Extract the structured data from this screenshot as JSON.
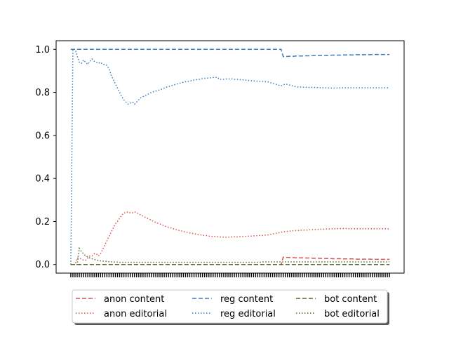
{
  "chart_data": {
    "type": "line",
    "title": "",
    "xlabel": "",
    "ylabel": "",
    "ylim": [
      -0.04,
      1.04
    ],
    "yticks": [
      0.0,
      0.2,
      0.4,
      0.6,
      0.8,
      1.0
    ],
    "ytick_labels": [
      "0.0",
      "0.2",
      "0.4",
      "0.6",
      "0.8",
      "1.0"
    ],
    "xticks_dense": true,
    "grid": false,
    "legend_placement": "below",
    "x": [
      0,
      1,
      2,
      3,
      4,
      5,
      6,
      7,
      8,
      9,
      10,
      11,
      12,
      13,
      14,
      15,
      16,
      17,
      18,
      19,
      20,
      21,
      22,
      23,
      24,
      25,
      26,
      27,
      28,
      29,
      30,
      31,
      32,
      33,
      34,
      35,
      36,
      37,
      38,
      39,
      40,
      41,
      42,
      43,
      44,
      45,
      46,
      47,
      48,
      49,
      50,
      51,
      52,
      53,
      54,
      55,
      56,
      57,
      58,
      59,
      60,
      61,
      62,
      63,
      64,
      65,
      66,
      67,
      68,
      69,
      70,
      71,
      72,
      73,
      74,
      75,
      76,
      77,
      78,
      79,
      80,
      81,
      82,
      83,
      84,
      85,
      86,
      87,
      88,
      89,
      90,
      91,
      92,
      93,
      94,
      95,
      96,
      97,
      98,
      99,
      100,
      101,
      102,
      103,
      104,
      105,
      106,
      107,
      108,
      109,
      110,
      111,
      112,
      113,
      114,
      115,
      116,
      117,
      118,
      119,
      120,
      121,
      122,
      123,
      124,
      125,
      126,
      127,
      128,
      129,
      130,
      131,
      132,
      133,
      134,
      135,
      136,
      137,
      138,
      139,
      140,
      141,
      142,
      143,
      144,
      145,
      146,
      147,
      148,
      149,
      150
    ],
    "series": [
      {
        "name": "anon content",
        "color": "#d9534f",
        "style": "dashed",
        "values": [
          0,
          0,
          0,
          0,
          0,
          0,
          0,
          0,
          0,
          0,
          0,
          0,
          0,
          0,
          0,
          0,
          0,
          0,
          0,
          0,
          0,
          0,
          0,
          0,
          0,
          0,
          0,
          0,
          0,
          0,
          0,
          0,
          0,
          0,
          0,
          0,
          0,
          0,
          0,
          0,
          0,
          0,
          0,
          0,
          0,
          0,
          0,
          0,
          0,
          0,
          0,
          0,
          0,
          0,
          0,
          0,
          0,
          0,
          0,
          0,
          0,
          0,
          0,
          0,
          0,
          0,
          0,
          0,
          0,
          0,
          0,
          0,
          0,
          0,
          0,
          0,
          0,
          0,
          0,
          0,
          0,
          0,
          0,
          0,
          0,
          0,
          0,
          0,
          0,
          0,
          0,
          0,
          0,
          0,
          0,
          0,
          0,
          0,
          0,
          0,
          0.034,
          0.033,
          0.033,
          0.032,
          0.032,
          0.032,
          0.031,
          0.031,
          0.031,
          0.031,
          0.03,
          0.03,
          0.03,
          0.03,
          0.029,
          0.029,
          0.029,
          0.029,
          0.028,
          0.028,
          0.028,
          0.028,
          0.028,
          0.027,
          0.027,
          0.027,
          0.027,
          0.027,
          0.026,
          0.026,
          0.026,
          0.026,
          0.026,
          0.026,
          0.025,
          0.025,
          0.025,
          0.025,
          0.025,
          0.025,
          0.025,
          0.025,
          0.024,
          0.024,
          0.024,
          0.024,
          0.024,
          0.024,
          0.024,
          0.024,
          0.024
        ]
      },
      {
        "name": "anon editorial",
        "color": "#d9534f",
        "style": "dotted",
        "values": [
          0,
          0,
          0,
          0.03,
          0.03,
          0.025,
          0.02,
          0.02,
          0.03,
          0.04,
          0.04,
          0.05,
          0.05,
          0.04,
          0.05,
          0.07,
          0.09,
          0.11,
          0.13,
          0.15,
          0.17,
          0.19,
          0.2,
          0.215,
          0.23,
          0.24,
          0.24,
          0.245,
          0.24,
          0.24,
          0.245,
          0.24,
          0.235,
          0.23,
          0.225,
          0.22,
          0.215,
          0.21,
          0.205,
          0.2,
          0.196,
          0.192,
          0.188,
          0.184,
          0.18,
          0.176,
          0.173,
          0.17,
          0.167,
          0.164,
          0.161,
          0.158,
          0.156,
          0.153,
          0.151,
          0.149,
          0.147,
          0.145,
          0.143,
          0.141,
          0.139,
          0.138,
          0.136,
          0.135,
          0.134,
          0.132,
          0.131,
          0.13,
          0.13,
          0.129,
          0.128,
          0.128,
          0.127,
          0.127,
          0.127,
          0.128,
          0.128,
          0.129,
          0.128,
          0.129,
          0.13,
          0.13,
          0.131,
          0.131,
          0.132,
          0.132,
          0.133,
          0.134,
          0.134,
          0.135,
          0.135,
          0.136,
          0.137,
          0.138,
          0.14,
          0.142,
          0.144,
          0.146,
          0.148,
          0.15,
          0.152,
          0.153,
          0.154,
          0.155,
          0.156,
          0.157,
          0.158,
          0.158,
          0.159,
          0.16,
          0.16,
          0.16,
          0.161,
          0.161,
          0.162,
          0.162,
          0.163,
          0.163,
          0.164,
          0.164,
          0.165,
          0.165,
          0.165,
          0.166,
          0.166,
          0.166,
          0.167,
          0.167,
          0.167,
          0.167,
          0.167,
          0.166,
          0.166,
          0.166,
          0.166,
          0.166,
          0.166,
          0.166,
          0.166,
          0.166,
          0.166,
          0.166,
          0.166,
          0.166,
          0.166,
          0.166,
          0.166,
          0.166,
          0.166,
          0.166,
          0.166
        ]
      },
      {
        "name": "reg content",
        "color": "#3a7ebf",
        "style": "dashed",
        "values": [
          1,
          1,
          1,
          1,
          1,
          1,
          1,
          1,
          1,
          1,
          1,
          1,
          1,
          1,
          1,
          1,
          1,
          1,
          1,
          1,
          1,
          1,
          1,
          1,
          1,
          1,
          1,
          1,
          1,
          1,
          1,
          1,
          1,
          1,
          1,
          1,
          1,
          1,
          1,
          1,
          1,
          1,
          1,
          1,
          1,
          1,
          1,
          1,
          1,
          1,
          1,
          1,
          1,
          1,
          1,
          1,
          1,
          1,
          1,
          1,
          1,
          1,
          1,
          1,
          1,
          1,
          1,
          1,
          1,
          1,
          1,
          1,
          1,
          1,
          1,
          1,
          1,
          1,
          1,
          1,
          1,
          1,
          1,
          1,
          1,
          1,
          1,
          1,
          1,
          1,
          1,
          1,
          1,
          1,
          1,
          1,
          1,
          1,
          1,
          1,
          0.966,
          0.967,
          0.967,
          0.968,
          0.968,
          0.968,
          0.969,
          0.969,
          0.969,
          0.969,
          0.97,
          0.97,
          0.97,
          0.97,
          0.971,
          0.971,
          0.971,
          0.971,
          0.972,
          0.972,
          0.972,
          0.972,
          0.972,
          0.973,
          0.973,
          0.973,
          0.973,
          0.973,
          0.974,
          0.974,
          0.974,
          0.974,
          0.974,
          0.974,
          0.975,
          0.975,
          0.975,
          0.975,
          0.975,
          0.975,
          0.975,
          0.975,
          0.976,
          0.976,
          0.976,
          0.976,
          0.976,
          0.976,
          0.976,
          0.976,
          0.976
        ]
      },
      {
        "name": "reg editorial",
        "color": "#3a7ebf",
        "style": "dotted",
        "values": [
          0,
          1,
          1,
          0.97,
          0.94,
          0.935,
          0.95,
          0.94,
          0.93,
          0.945,
          0.955,
          0.945,
          0.94,
          0.935,
          0.94,
          0.93,
          0.93,
          0.925,
          0.91,
          0.88,
          0.86,
          0.84,
          0.82,
          0.8,
          0.78,
          0.765,
          0.755,
          0.745,
          0.75,
          0.755,
          0.745,
          0.755,
          0.765,
          0.775,
          0.78,
          0.785,
          0.79,
          0.795,
          0.8,
          0.803,
          0.806,
          0.809,
          0.812,
          0.816,
          0.82,
          0.824,
          0.827,
          0.83,
          0.833,
          0.836,
          0.839,
          0.842,
          0.844,
          0.847,
          0.849,
          0.851,
          0.853,
          0.855,
          0.857,
          0.859,
          0.86,
          0.862,
          0.864,
          0.865,
          0.866,
          0.867,
          0.868,
          0.869,
          0.869,
          0.87,
          0.86,
          0.861,
          0.861,
          0.862,
          0.862,
          0.863,
          0.862,
          0.86,
          0.861,
          0.86,
          0.859,
          0.858,
          0.857,
          0.856,
          0.855,
          0.854,
          0.853,
          0.853,
          0.852,
          0.851,
          0.851,
          0.85,
          0.849,
          0.848,
          0.845,
          0.842,
          0.839,
          0.836,
          0.833,
          0.83,
          0.835,
          0.838,
          0.837,
          0.834,
          0.831,
          0.828,
          0.826,
          0.825,
          0.825,
          0.824,
          0.824,
          0.824,
          0.823,
          0.824,
          0.823,
          0.823,
          0.822,
          0.822,
          0.821,
          0.821,
          0.821,
          0.82,
          0.82,
          0.82,
          0.82,
          0.82,
          0.821,
          0.821,
          0.821,
          0.821,
          0.821,
          0.821,
          0.821,
          0.821,
          0.821,
          0.821,
          0.821,
          0.821,
          0.821,
          0.821,
          0.821,
          0.821,
          0.821,
          0.821,
          0.821,
          0.821,
          0.821,
          0.821,
          0.821,
          0.821,
          0.821
        ]
      },
      {
        "name": "bot content",
        "color": "#556b2f",
        "style": "dashed",
        "values": [
          0,
          0,
          0,
          0,
          0,
          0,
          0,
          0,
          0,
          0,
          0,
          0,
          0,
          0,
          0,
          0,
          0,
          0,
          0,
          0,
          0,
          0,
          0,
          0,
          0,
          0,
          0,
          0,
          0,
          0,
          0,
          0,
          0,
          0,
          0,
          0,
          0,
          0,
          0,
          0,
          0,
          0,
          0,
          0,
          0,
          0,
          0,
          0,
          0,
          0,
          0,
          0,
          0,
          0,
          0,
          0,
          0,
          0,
          0,
          0,
          0,
          0,
          0,
          0,
          0,
          0,
          0,
          0,
          0,
          0,
          0,
          0,
          0,
          0,
          0,
          0,
          0,
          0,
          0,
          0,
          0,
          0,
          0,
          0,
          0,
          0,
          0,
          0,
          0,
          0,
          0,
          0,
          0,
          0,
          0,
          0,
          0,
          0,
          0,
          0,
          0,
          0,
          0,
          0,
          0,
          0,
          0,
          0,
          0,
          0,
          0,
          0,
          0,
          0,
          0,
          0,
          0,
          0,
          0,
          0,
          0,
          0,
          0,
          0,
          0,
          0,
          0,
          0,
          0,
          0,
          0,
          0,
          0,
          0,
          0,
          0,
          0,
          0,
          0,
          0,
          0,
          0,
          0,
          0,
          0,
          0,
          0,
          0,
          0,
          0,
          0
        ]
      },
      {
        "name": "bot editorial",
        "color": "#556b2f",
        "style": "dotted",
        "values": [
          0,
          0,
          0,
          0,
          0.075,
          0.06,
          0.05,
          0.04,
          0.035,
          0.03,
          0.027,
          0.024,
          0.021,
          0.019,
          0.017,
          0.016,
          0.015,
          0.014,
          0.013,
          0.012,
          0.012,
          0.011,
          0.011,
          0.01,
          0.01,
          0.01,
          0.01,
          0.01,
          0.01,
          0.01,
          0.01,
          0.01,
          0.01,
          0.01,
          0.01,
          0.01,
          0.01,
          0.01,
          0.01,
          0.01,
          0.01,
          0.01,
          0.01,
          0.01,
          0.01,
          0.01,
          0.01,
          0.01,
          0.01,
          0.01,
          0.01,
          0.01,
          0.01,
          0.01,
          0.01,
          0.01,
          0.01,
          0.01,
          0.01,
          0.01,
          0.01,
          0.01,
          0.01,
          0.01,
          0.01,
          0.01,
          0.01,
          0.01,
          0.01,
          0.01,
          0.01,
          0.01,
          0.01,
          0.01,
          0.01,
          0.01,
          0.01,
          0.01,
          0.01,
          0.01,
          0.01,
          0.01,
          0.01,
          0.01,
          0.01,
          0.01,
          0.01,
          0.01,
          0.01,
          0.01,
          0.012,
          0.012,
          0.012,
          0.012,
          0.012,
          0.012,
          0.012,
          0.012,
          0.012,
          0.012,
          0.012,
          0.012,
          0.012,
          0.012,
          0.012,
          0.012,
          0.012,
          0.012,
          0.012,
          0.012,
          0.012,
          0.012,
          0.012,
          0.012,
          0.012,
          0.012,
          0.012,
          0.012,
          0.012,
          0.012,
          0.012,
          0.012,
          0.012,
          0.012,
          0.012,
          0.012,
          0.012,
          0.012,
          0.012,
          0.012,
          0.012,
          0.012,
          0.012,
          0.012,
          0.012,
          0.012,
          0.012,
          0.012,
          0.012,
          0.012,
          0.012,
          0.012,
          0.012,
          0.012,
          0.012,
          0.012,
          0.012,
          0.012,
          0.012,
          0.012,
          0.012
        ]
      }
    ]
  }
}
